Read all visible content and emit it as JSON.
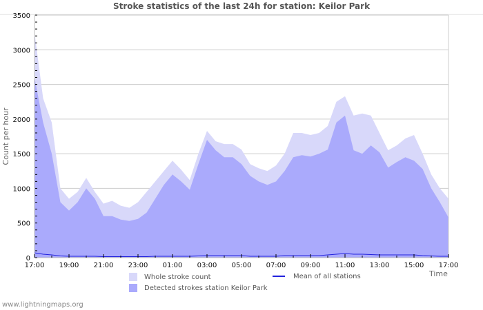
{
  "chart_data": {
    "type": "area",
    "title": "Stroke statistics of the last 24h for station: Keilor Park",
    "xlabel": "Time",
    "ylabel": "Count per hour",
    "ylim": [
      0,
      3500
    ],
    "yticks": [
      "0",
      "500",
      "1000",
      "1500",
      "2000",
      "2500",
      "3000",
      "3500"
    ],
    "xticks": [
      "17:00",
      "19:00",
      "21:00",
      "23:00",
      "01:00",
      "03:00",
      "05:00",
      "07:00",
      "09:00",
      "11:00",
      "13:00",
      "15:00",
      "17:00"
    ],
    "grid": true,
    "legend_position": "bottom",
    "x": [
      "17:00",
      "17:30",
      "18:00",
      "18:30",
      "19:00",
      "19:30",
      "20:00",
      "20:30",
      "21:00",
      "21:30",
      "22:00",
      "22:30",
      "23:00",
      "23:30",
      "00:00",
      "00:30",
      "01:00",
      "01:30",
      "02:00",
      "02:30",
      "03:00",
      "03:30",
      "04:00",
      "04:30",
      "05:00",
      "05:30",
      "06:00",
      "06:30",
      "07:00",
      "07:30",
      "08:00",
      "08:30",
      "09:00",
      "09:30",
      "10:00",
      "10:30",
      "11:00",
      "11:30",
      "12:00",
      "12:30",
      "13:00",
      "13:30",
      "14:00",
      "14:30",
      "15:00",
      "15:30",
      "16:00",
      "16:30",
      "17:00"
    ],
    "series": [
      {
        "name": "Whole stroke count",
        "color": "#d8d8fa",
        "values": [
          3250,
          2300,
          1950,
          1000,
          850,
          950,
          1150,
          950,
          780,
          820,
          750,
          720,
          800,
          950,
          1100,
          1250,
          1400,
          1270,
          1120,
          1500,
          1830,
          1680,
          1640,
          1640,
          1560,
          1350,
          1290,
          1250,
          1330,
          1500,
          1800,
          1800,
          1770,
          1800,
          1900,
          2250,
          2330,
          2050,
          2080,
          2050,
          1800,
          1550,
          1620,
          1720,
          1770,
          1500,
          1200,
          1000,
          850
        ]
      },
      {
        "name": "Detected strokes station Keilor Park",
        "color": "#aaaafc",
        "values": [
          2600,
          1950,
          1500,
          800,
          680,
          800,
          1000,
          850,
          600,
          600,
          550,
          530,
          560,
          650,
          850,
          1050,
          1200,
          1100,
          980,
          1350,
          1700,
          1550,
          1450,
          1450,
          1350,
          1180,
          1100,
          1050,
          1100,
          1250,
          1450,
          1480,
          1460,
          1500,
          1560,
          1950,
          2050,
          1550,
          1500,
          1620,
          1520,
          1300,
          1380,
          1450,
          1400,
          1280,
          1000,
          800,
          580
        ]
      },
      {
        "name": "Mean of all stations",
        "color": "#2222dd",
        "values": [
          70,
          50,
          40,
          25,
          20,
          20,
          20,
          20,
          15,
          15,
          15,
          15,
          15,
          15,
          20,
          20,
          20,
          20,
          20,
          25,
          30,
          30,
          30,
          30,
          30,
          20,
          20,
          20,
          20,
          30,
          30,
          30,
          30,
          30,
          40,
          50,
          60,
          50,
          50,
          45,
          40,
          40,
          40,
          40,
          40,
          30,
          25,
          20,
          20
        ]
      }
    ]
  },
  "legend": {
    "whole": "Whole stroke count",
    "detected": "Detected strokes station Keilor Park",
    "mean": "Mean of all stations"
  },
  "footer": "www.lightningmaps.org"
}
